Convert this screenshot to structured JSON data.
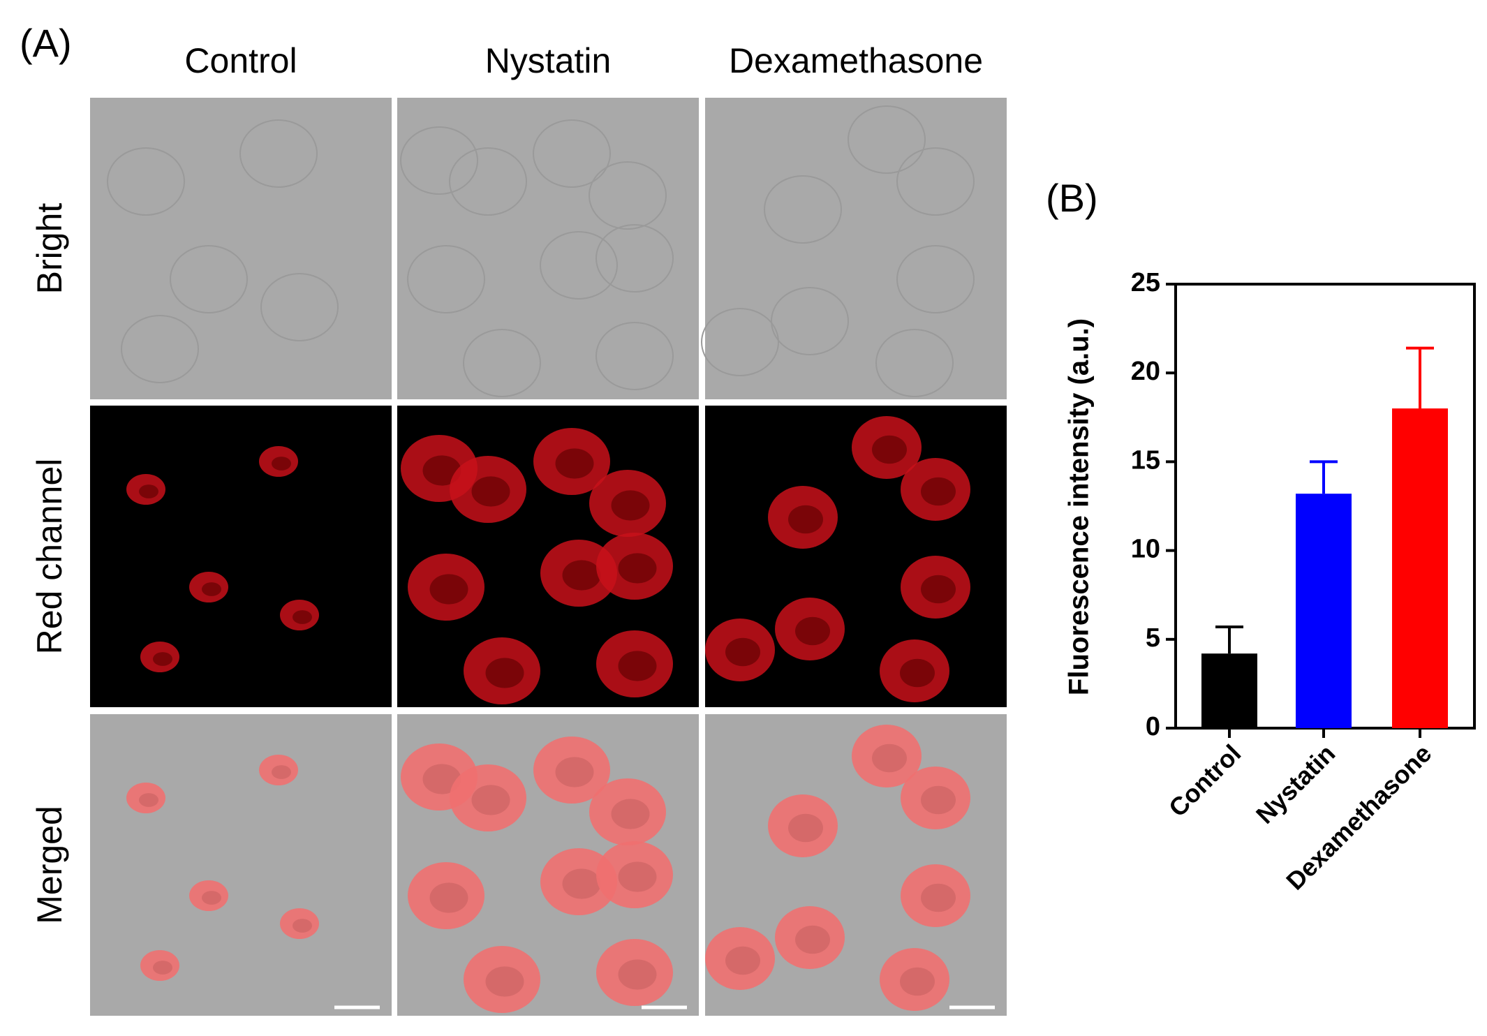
{
  "panel_a": {
    "label": "(A)",
    "columns": [
      "Control",
      "Nystatin",
      "Dexamethasone"
    ],
    "rows": [
      "Bright",
      "Red channel",
      "Merged"
    ]
  },
  "chart_data": {
    "type": "bar",
    "panel_label": "(B)",
    "y_label": "Fluorescence intensity (a.u.)",
    "categories": [
      "Control",
      "Nystatin",
      "Dexamethasone"
    ],
    "values": [
      4.2,
      13.2,
      18.0
    ],
    "errors": [
      1.5,
      1.8,
      3.4
    ],
    "colors": [
      "#000000",
      "#0000ff",
      "#ff0000"
    ],
    "ylim": [
      0,
      25
    ],
    "yticks": [
      0,
      5,
      10,
      15,
      20,
      25
    ],
    "grid": false
  }
}
